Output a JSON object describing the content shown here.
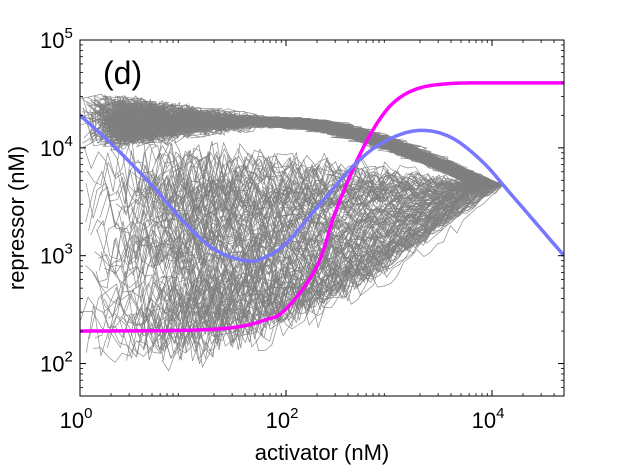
{
  "chart_data": {
    "type": "line",
    "panel_label": "(d)",
    "xlabel": "activator (nM)",
    "ylabel": "repressor (nM)",
    "xscale": "log",
    "yscale": "log",
    "xlim": [
      1,
      50000
    ],
    "ylim": [
      50,
      100000
    ],
    "x_ticks": [
      {
        "value": 1,
        "base": "10",
        "exp": "0"
      },
      {
        "value": 100,
        "base": "10",
        "exp": "2"
      },
      {
        "value": 10000,
        "base": "10",
        "exp": "4"
      }
    ],
    "y_ticks": [
      {
        "value": 100,
        "base": "10",
        "exp": "2"
      },
      {
        "value": 1000,
        "base": "10",
        "exp": "3"
      },
      {
        "value": 10000,
        "base": "10",
        "exp": "4"
      },
      {
        "value": 100000,
        "base": "10",
        "exp": "5"
      }
    ],
    "series": [
      {
        "name": "magenta-nullcline",
        "color": "#ff00ff",
        "x": [
          1,
          10,
          30,
          60,
          100,
          200,
          300,
          500,
          800,
          1200,
          2000,
          4000,
          10000,
          50000
        ],
        "y": [
          200,
          203,
          215,
          250,
          320,
          800,
          2500,
          8000,
          18000,
          28000,
          36000,
          39500,
          40000,
          40000
        ]
      },
      {
        "name": "blue-nullcline",
        "color": "#7777ff",
        "x": [
          1,
          2,
          5,
          10,
          20,
          40,
          60,
          100,
          200,
          500,
          1000,
          2000,
          4000,
          8000,
          15000,
          50000
        ],
        "y": [
          20000,
          11000,
          4500,
          2100,
          1150,
          900,
          950,
          1300,
          2800,
          7500,
          12000,
          14500,
          12500,
          7500,
          3800,
          1000
        ]
      }
    ],
    "trajectories": {
      "name": "stochastic-trajectories",
      "color": "#808080",
      "count": 140,
      "description_bands": {
        "upper_plateau_y": [
          16000,
          19000
        ],
        "lower_band_y": [
          150,
          6000
        ],
        "left_x": [
          1,
          30
        ],
        "turn_x": [
          6000,
          13000
        ]
      }
    }
  }
}
